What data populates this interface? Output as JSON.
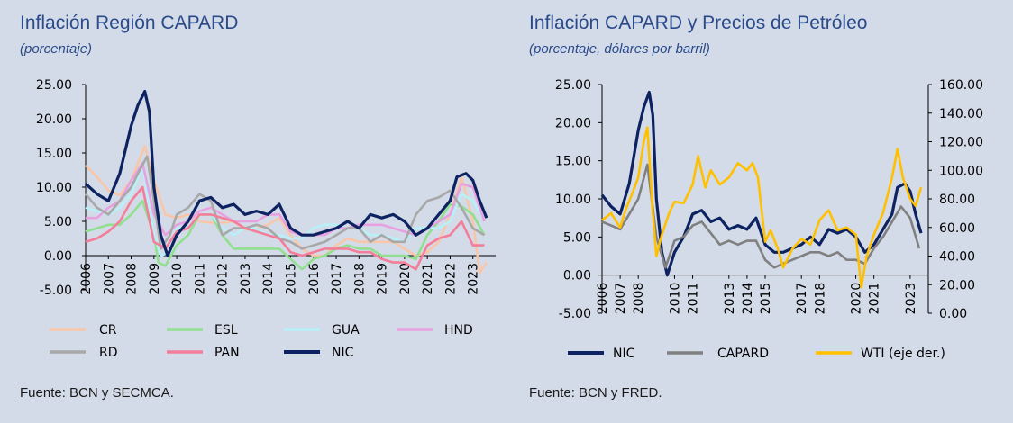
{
  "left": {
    "title": "Inflación Región CAPARD",
    "subtitle": "(porcentaje)",
    "source": "Fuente: BCN y SECMCA."
  },
  "right": {
    "title": "Inflación CAPARD y Precios de Petróleo",
    "subtitle": "(porcentaje, dólares por barril)",
    "source": "Fuente: BCN y FRED."
  },
  "chart_data": [
    {
      "type": "line",
      "title": "Inflación Región CAPARD",
      "ylim": [
        -5,
        25
      ],
      "yticks": [
        "25.00",
        "20.00",
        "15.00",
        "10.00",
        "5.00",
        "0.00",
        "-5.00"
      ],
      "xlim": [
        2006,
        2024
      ],
      "xticks": [
        "2006",
        "2007",
        "2008",
        "2009",
        "2010",
        "2011",
        "2012",
        "2013",
        "2014",
        "2015",
        "2016",
        "2017",
        "2018",
        "2019",
        "2020",
        "2021",
        "2022",
        "2023"
      ],
      "legend_position": "bottom",
      "series": [
        {
          "name": "CR",
          "color": "#f9c6a8",
          "x": [
            2006,
            2006.5,
            2007,
            2007.5,
            2008,
            2008.3,
            2008.6,
            2009,
            2009.5,
            2010,
            2010.5,
            2011,
            2011.5,
            2012,
            2012.5,
            2013,
            2013.5,
            2014,
            2014.5,
            2015,
            2015.5,
            2016,
            2016.5,
            2017,
            2017.5,
            2018,
            2018.5,
            2019,
            2019.5,
            2020,
            2020.5,
            2021,
            2021.5,
            2022,
            2022.5,
            2023,
            2023.3,
            2023.6
          ],
          "y": [
            13.2,
            11.5,
            9.5,
            8.8,
            11,
            13.5,
            16,
            11,
            6,
            5.5,
            6,
            5,
            4.8,
            4.8,
            5,
            3.8,
            4,
            4.5,
            5.5,
            3,
            1,
            0,
            0,
            1.5,
            2.5,
            2,
            2,
            2,
            2,
            1,
            0,
            0.5,
            2,
            6,
            11.5,
            5,
            -2.5,
            -1
          ]
        },
        {
          "name": "ESL",
          "color": "#90e090",
          "x": [
            2006,
            2006.5,
            2007,
            2007.5,
            2008,
            2008.5,
            2009,
            2009.2,
            2009.5,
            2010,
            2010.5,
            2011,
            2011.5,
            2012,
            2012.5,
            2013,
            2013.5,
            2014,
            2014.5,
            2015,
            2015.5,
            2016,
            2016.5,
            2017,
            2017.5,
            2018,
            2018.5,
            2019,
            2019.5,
            2020,
            2020.5,
            2021,
            2021.5,
            2022,
            2022.5,
            2023,
            2023.5
          ],
          "y": [
            3.5,
            4,
            4.5,
            4.5,
            6,
            8,
            3,
            -1,
            -1.5,
            1.5,
            3,
            6,
            6,
            3,
            1,
            1,
            1,
            1,
            1,
            -0.5,
            -2,
            -0.5,
            0,
            1,
            1.5,
            1,
            1,
            0,
            0,
            0,
            -0.5,
            3,
            5,
            7.5,
            7.2,
            6,
            3
          ]
        },
        {
          "name": "GUA",
          "color": "#b8f0f8",
          "x": [
            2006,
            2006.5,
            2007,
            2007.5,
            2008,
            2008.5,
            2009,
            2009.3,
            2009.7,
            2010,
            2010.5,
            2011,
            2011.5,
            2012,
            2012.5,
            2013,
            2013.5,
            2014,
            2014.5,
            2015,
            2015.5,
            2016,
            2016.5,
            2017,
            2017.5,
            2018,
            2018.5,
            2019,
            2019.5,
            2020,
            2020.5,
            2021,
            2021.5,
            2022,
            2022.5,
            2023,
            2023.5
          ],
          "y": [
            7,
            6.5,
            6,
            7,
            9,
            13,
            3,
            0,
            0.5,
            4,
            4,
            6,
            6,
            4,
            3,
            4,
            4,
            3,
            3,
            2.5,
            2.5,
            4,
            4.5,
            4.5,
            4,
            4,
            3,
            3,
            2.5,
            2,
            4,
            4,
            4,
            5,
            9,
            8,
            5
          ]
        },
        {
          "name": "HND",
          "color": "#e8a0e0",
          "x": [
            2006,
            2006.5,
            2007,
            2007.5,
            2008,
            2008.5,
            2009,
            2009.5,
            2010,
            2010.5,
            2011,
            2011.5,
            2012,
            2012.5,
            2013,
            2013.5,
            2014,
            2014.5,
            2015,
            2015.5,
            2016,
            2016.5,
            2017,
            2017.5,
            2018,
            2018.5,
            2019,
            2019.5,
            2020,
            2020.5,
            2021,
            2021.5,
            2022,
            2022.5,
            2023,
            2023.5
          ],
          "y": [
            5.5,
            5.5,
            7,
            8,
            11,
            13.5,
            6,
            3,
            4.5,
            5,
            6.5,
            7,
            6,
            5,
            5,
            5,
            6,
            6,
            3.5,
            3,
            3,
            3,
            4,
            4,
            4.5,
            4.5,
            4.5,
            4,
            3.5,
            3,
            4,
            5,
            6,
            10.5,
            10,
            5
          ]
        },
        {
          "name": "RD",
          "color": "#a8a8a8",
          "x": [
            2006,
            2006.5,
            2007,
            2007.5,
            2008,
            2008.3,
            2008.7,
            2009,
            2009.3,
            2009.7,
            2010,
            2010.5,
            2011,
            2011.5,
            2012,
            2012.5,
            2013,
            2013.5,
            2014,
            2014.5,
            2015,
            2015.5,
            2016,
            2016.5,
            2017,
            2017.5,
            2018,
            2018.5,
            2019,
            2019.5,
            2020,
            2020.5,
            2021,
            2021.5,
            2022,
            2022.5,
            2023,
            2023.5
          ],
          "y": [
            9,
            7,
            6,
            8,
            10,
            12,
            14.5,
            8,
            1,
            3,
            6,
            7,
            9,
            8,
            3,
            4,
            4,
            4.5,
            4,
            2.5,
            2,
            1,
            1.5,
            2,
            3,
            4,
            4,
            2,
            3,
            2,
            2,
            6,
            8,
            8.5,
            9.5,
            7,
            4,
            3
          ]
        },
        {
          "name": "PAN",
          "color": "#f47e9a",
          "x": [
            2006,
            2006.5,
            2007,
            2007.5,
            2008,
            2008.5,
            2009,
            2009.5,
            2010,
            2010.5,
            2011,
            2011.5,
            2012,
            2012.5,
            2013,
            2013.5,
            2014,
            2014.5,
            2015,
            2015.5,
            2016,
            2016.5,
            2017,
            2017.5,
            2018,
            2018.5,
            2019,
            2019.5,
            2020,
            2020.5,
            2021,
            2021.5,
            2022,
            2022.5,
            2023,
            2023.5
          ],
          "y": [
            2,
            2.5,
            3.5,
            5,
            8,
            10,
            2,
            1,
            3.5,
            4,
            6,
            6,
            5.5,
            5,
            4,
            3.5,
            3,
            2.5,
            0.5,
            0,
            0.5,
            1,
            1,
            1,
            0.5,
            0.5,
            -0.5,
            -1,
            -1,
            -2,
            1.5,
            2.5,
            3,
            5,
            1.5,
            1.5
          ]
        },
        {
          "name": "NIC",
          "color": "#0d2260",
          "x": [
            2006,
            2006.5,
            2007,
            2007.5,
            2008,
            2008.3,
            2008.6,
            2008.8,
            2009,
            2009.3,
            2009.6,
            2010,
            2010.5,
            2011,
            2011.5,
            2012,
            2012.5,
            2013,
            2013.5,
            2014,
            2014.5,
            2015,
            2015.5,
            2016,
            2016.5,
            2017,
            2017.5,
            2018,
            2018.5,
            2019,
            2019.5,
            2020,
            2020.5,
            2021,
            2021.5,
            2022,
            2022.3,
            2022.7,
            2023,
            2023.3,
            2023.6
          ],
          "y": [
            10.5,
            9,
            8,
            12,
            19,
            22,
            24,
            21,
            10,
            3,
            0,
            3,
            5,
            8,
            8.5,
            7,
            7.5,
            6,
            6.5,
            6,
            7.5,
            4,
            3,
            3,
            3.5,
            4,
            5,
            4,
            6,
            5.5,
            6,
            5,
            3,
            4,
            6,
            8,
            11.5,
            12,
            11,
            8,
            5.5
          ]
        }
      ]
    },
    {
      "type": "line",
      "title": "Inflación CAPARD y Precios de Petróleo",
      "ylim": [
        -5,
        25
      ],
      "y2lim": [
        0,
        160
      ],
      "yticks": [
        "25.00",
        "20.00",
        "15.00",
        "10.00",
        "5.00",
        "0.00",
        "-5.00"
      ],
      "y2ticks": [
        "160.00",
        "140.00",
        "120.00",
        "100.00",
        "80.00",
        "60.00",
        "40.00",
        "20.00",
        "0.00"
      ],
      "xlim": [
        2006,
        2024
      ],
      "xticks": [
        "2006",
        "2007",
        "2008",
        "2010",
        "2011",
        "2013",
        "2014",
        "2015",
        "2017",
        "2018",
        "2020",
        "2021",
        "2023"
      ],
      "legend_position": "bottom",
      "series": [
        {
          "name": "NIC",
          "color": "#0d2260",
          "axis": "left",
          "x": [
            2006,
            2006.5,
            2007,
            2007.5,
            2008,
            2008.3,
            2008.6,
            2008.8,
            2009,
            2009.3,
            2009.6,
            2010,
            2010.5,
            2011,
            2011.5,
            2012,
            2012.5,
            2013,
            2013.5,
            2014,
            2014.5,
            2015,
            2015.5,
            2016,
            2016.5,
            2017,
            2017.5,
            2018,
            2018.5,
            2019,
            2019.5,
            2020,
            2020.5,
            2021,
            2021.5,
            2022,
            2022.3,
            2022.7,
            2023,
            2023.3,
            2023.6
          ],
          "y": [
            10.5,
            9,
            8,
            12,
            19,
            22,
            24,
            21,
            10,
            3,
            0,
            3,
            5,
            8,
            8.5,
            7,
            7.5,
            6,
            6.5,
            6,
            7.5,
            4,
            3,
            3,
            3.5,
            4,
            5,
            4,
            6,
            5.5,
            6,
            5,
            3,
            4,
            6,
            8,
            11.5,
            12,
            11,
            8,
            5.5
          ]
        },
        {
          "name": "CAPARD",
          "color": "#808080",
          "axis": "left",
          "x": [
            2006,
            2006.5,
            2007,
            2007.5,
            2008,
            2008.5,
            2009,
            2009.5,
            2010,
            2010.5,
            2011,
            2011.5,
            2012,
            2012.5,
            2013,
            2013.5,
            2014,
            2014.5,
            2015,
            2015.5,
            2016,
            2016.5,
            2017,
            2017.5,
            2018,
            2018.5,
            2019,
            2019.5,
            2020,
            2020.5,
            2021,
            2021.5,
            2022,
            2022.5,
            2023,
            2023.5
          ],
          "y": [
            7,
            6.5,
            6,
            8,
            10,
            14.5,
            5,
            1,
            4.5,
            5,
            6.5,
            7,
            5.5,
            4,
            4.5,
            4,
            4.5,
            4.5,
            2,
            1,
            1.5,
            2,
            2.5,
            3,
            3,
            2.5,
            3,
            2,
            2,
            1.5,
            3.5,
            5,
            7,
            9,
            7.5,
            3.5
          ]
        },
        {
          "name": "WTI (eje der.)",
          "color": "#ffc000",
          "axis": "right",
          "x": [
            2006,
            2006.5,
            2007,
            2007.3,
            2007.7,
            2008,
            2008.3,
            2008.5,
            2008.8,
            2009,
            2009.3,
            2009.7,
            2010,
            2010.5,
            2011,
            2011.3,
            2011.7,
            2012,
            2012.5,
            2013,
            2013.5,
            2014,
            2014.3,
            2014.6,
            2015,
            2015.3,
            2015.7,
            2016,
            2016.5,
            2017,
            2017.5,
            2018,
            2018.5,
            2019,
            2019.5,
            2020,
            2020.3,
            2020.6,
            2021,
            2021.5,
            2022,
            2022.3,
            2022.6,
            2023,
            2023.3,
            2023.6
          ],
          "y": [
            65,
            70,
            60,
            72,
            85,
            95,
            120,
            130,
            70,
            40,
            55,
            70,
            78,
            77,
            90,
            110,
            88,
            100,
            90,
            95,
            105,
            100,
            105,
            95,
            50,
            58,
            45,
            32,
            45,
            52,
            48,
            65,
            72,
            58,
            60,
            55,
            18,
            40,
            55,
            70,
            95,
            115,
            95,
            80,
            75,
            88
          ]
        }
      ]
    }
  ]
}
